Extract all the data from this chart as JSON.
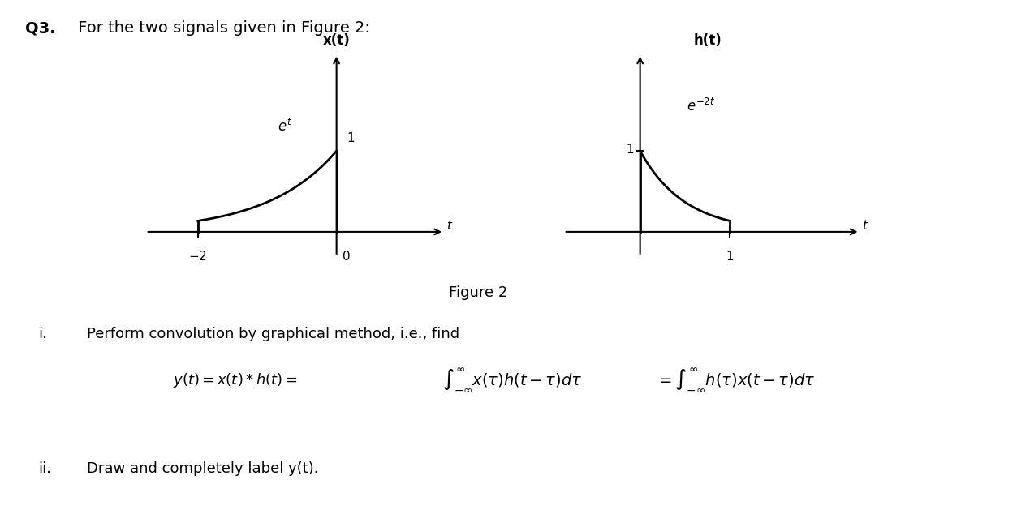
{
  "title_bold": "Q3.",
  "title_text": " For the two signals given in Figure 2:",
  "fig_label": "Figure 2",
  "graph1_title": "x(t)",
  "graph2_title": "h(t)",
  "item_i": "i.",
  "item_i_text": "Perform convolution by graphical method, i.e., find",
  "item_ii": "ii.",
  "item_ii_text": "Draw and completely label y(t).",
  "bg_color": "#ffffff",
  "text_color": "#000000",
  "line_color": "#000000"
}
